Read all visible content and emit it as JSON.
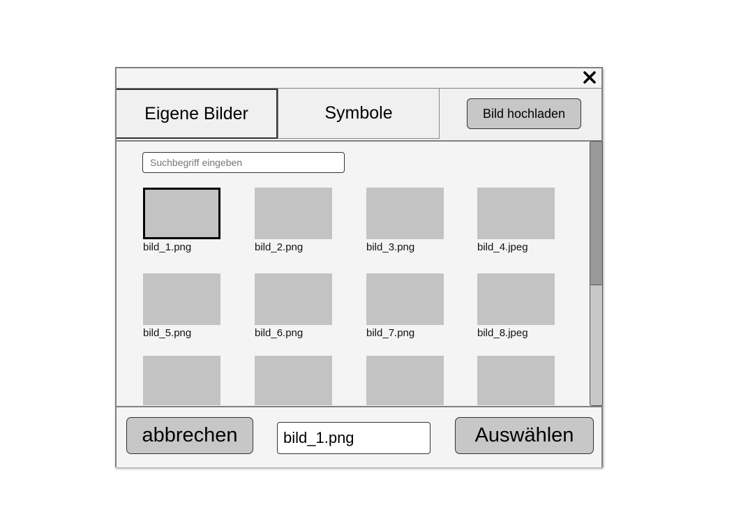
{
  "dialog": {
    "close_icon": "close-icon"
  },
  "tabs": [
    {
      "label": "Eigene Bilder",
      "active": true
    },
    {
      "label": "Symbole",
      "active": false
    }
  ],
  "upload_button": "Bild hochladen",
  "search": {
    "placeholder": "Suchbegriff eingeben",
    "value": ""
  },
  "images": [
    {
      "name": "bild_1.png",
      "selected": true
    },
    {
      "name": "bild_2.png",
      "selected": false
    },
    {
      "name": "bild_3.png",
      "selected": false
    },
    {
      "name": "bild_4.jpeg",
      "selected": false
    },
    {
      "name": "bild_5.png",
      "selected": false
    },
    {
      "name": "bild_6.png",
      "selected": false
    },
    {
      "name": "bild_7.png",
      "selected": false
    },
    {
      "name": "bild_8.jpeg",
      "selected": false
    },
    {
      "name": "",
      "selected": false
    },
    {
      "name": "",
      "selected": false
    },
    {
      "name": "",
      "selected": false
    },
    {
      "name": "",
      "selected": false
    }
  ],
  "footer": {
    "cancel_label": "abbrechen",
    "filename_value": "bild_1.png",
    "select_label": "Auswählen"
  },
  "colors": {
    "tile": "#c3c3c3",
    "button": "#c7c7c7",
    "panel": "#f4f4f4",
    "border": "#808080"
  }
}
